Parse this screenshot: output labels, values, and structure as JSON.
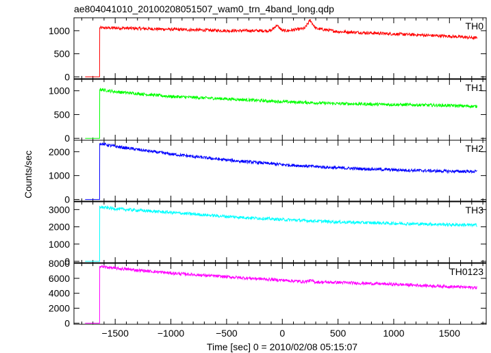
{
  "chart_data": {
    "type": "line",
    "title": "ae804041010_20100208051507_wam0_trn_4band_long.qdp",
    "xlabel": "Time [sec] 0 = 2010/02/08 05:15:07",
    "ylabel": "Counts/sec",
    "xlim": [
      -1870,
      1830
    ],
    "xticks": [
      -1500,
      -1000,
      -500,
      0,
      500,
      1000,
      1500
    ],
    "xtick_labels": [
      "−1500",
      "−1000",
      "−500",
      "0",
      "500",
      "1000",
      "1500"
    ],
    "panels": [
      {
        "name": "TH0",
        "color": "#ff0000",
        "ylim": [
          -40,
          1280
        ],
        "yticks": [
          0,
          500,
          1000
        ],
        "ytick_labels": [
          "0",
          "500",
          "1000"
        ],
        "x": [
          -1770,
          -1640,
          -1639,
          -1500,
          -1000,
          -500,
          -100,
          -50,
          0,
          50,
          200,
          250,
          300,
          500,
          1000,
          1500,
          1750
        ],
        "y": [
          0,
          0,
          1060,
          1060,
          1030,
          1000,
          1000,
          1120,
          1000,
          1000,
          1050,
          1230,
          1050,
          980,
          930,
          880,
          840
        ]
      },
      {
        "name": "TH1",
        "color": "#00ff00",
        "ylim": [
          -40,
          1240
        ],
        "yticks": [
          0,
          500,
          1000
        ],
        "ytick_labels": [
          "0",
          "500",
          "1000"
        ],
        "x": [
          -1770,
          -1640,
          -1639,
          -1500,
          -1000,
          -500,
          0,
          500,
          1000,
          1500,
          1750
        ],
        "y": [
          0,
          0,
          1030,
          980,
          880,
          830,
          770,
          730,
          710,
          690,
          670
        ]
      },
      {
        "name": "TH2",
        "color": "#0000ff",
        "ylim": [
          -70,
          2480
        ],
        "yticks": [
          0,
          1000,
          2000
        ],
        "ytick_labels": [
          "0",
          "1000",
          "2000"
        ],
        "x": [
          -1770,
          -1640,
          -1639,
          -1500,
          -1000,
          -500,
          0,
          500,
          1000,
          1500,
          1750
        ],
        "y": [
          0,
          0,
          2350,
          2220,
          1900,
          1650,
          1460,
          1320,
          1240,
          1180,
          1170
        ]
      },
      {
        "name": "TH3",
        "color": "#00ffff",
        "ylim": [
          -80,
          3450
        ],
        "yticks": [
          0,
          1000,
          2000,
          3000
        ],
        "ytick_labels": [
          "0",
          "1000",
          "2000",
          "3000"
        ],
        "x": [
          -1770,
          -1640,
          -1639,
          -1500,
          -1000,
          -500,
          0,
          500,
          1000,
          1500,
          1750
        ],
        "y": [
          0,
          0,
          3150,
          3050,
          2830,
          2600,
          2420,
          2280,
          2200,
          2130,
          2100
        ]
      },
      {
        "name": "TH0123",
        "color": "#ff00ff",
        "ylim": [
          -150,
          8000
        ],
        "yticks": [
          0,
          2000,
          4000,
          6000,
          8000
        ],
        "ytick_labels": [
          "0",
          "2000",
          "4000",
          "6000",
          "8000"
        ],
        "x": [
          -1770,
          -1640,
          -1639,
          -1500,
          -1000,
          -500,
          0,
          200,
          250,
          300,
          500,
          1000,
          1500,
          1750
        ],
        "y": [
          0,
          0,
          7600,
          7350,
          6700,
          6200,
          5750,
          5550,
          5700,
          5500,
          5450,
          5200,
          4900,
          4750
        ]
      }
    ]
  }
}
